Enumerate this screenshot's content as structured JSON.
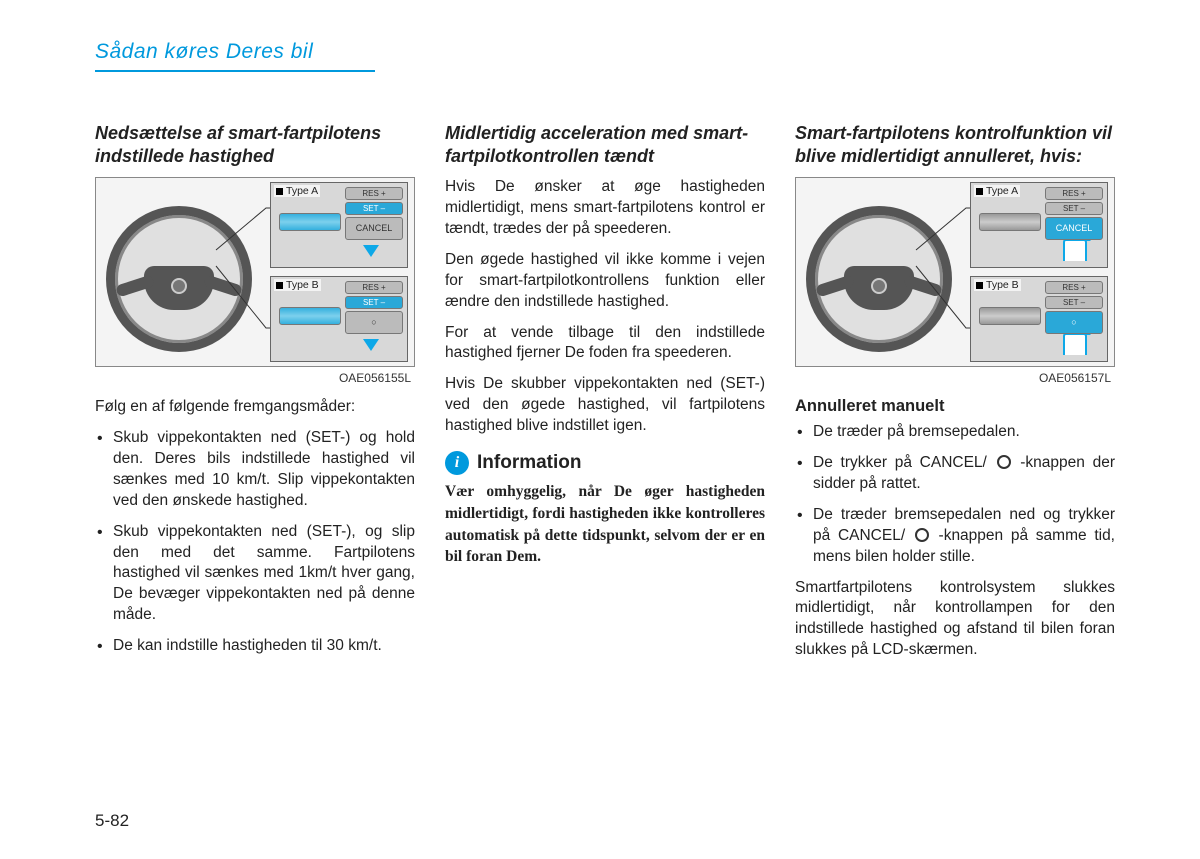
{
  "header": {
    "title": "Sådan køres Deres bil"
  },
  "page_number": "5-82",
  "col1": {
    "heading": "Nedsættelse af smart-fartpilotens indstillede hastighed",
    "figure": {
      "panelA_label": "Type A",
      "panelB_label": "Type B",
      "btn_res": "RES +",
      "btn_set": "SET –",
      "btn_cancel": "CANCEL",
      "btn_circle": "○",
      "caption": "OAE056155L",
      "hi_color": "#2aa8d8"
    },
    "intro": "Følg en af følgende fremgangsmåder:",
    "bullets": [
      "Skub vippekontakten ned (SET-) og hold den. Deres bils indstillede hastighed vil sænkes med 10 km/t. Slip vippekontakten ved den ønskede hastighed.",
      "Skub vippekontakten ned (SET-), og slip den med det samme. Fartpilotens hastighed vil sænkes med 1km/t hver gang, De bevæger vippekontakten ned på denne måde.",
      "De kan indstille hastigheden til 30 km/t."
    ]
  },
  "col2": {
    "heading": "Midlertidig acceleration med smart-fartpilotkontrollen tændt",
    "paras": [
      "Hvis De ønsker at øge hastigheden midlertidigt, mens smart-fartpilotens kontrol er tændt, trædes der på speederen.",
      "Den øgede hastighed vil ikke komme i vejen for smart-fartpilotkontrollens funktion eller ændre den indstillede hastighed.",
      "For at vende tilbage til den indstillede hastighed fjerner De foden fra speederen.",
      "Hvis De skubber vippekontakten ned (SET-) ved den øgede hastighed, vil fartpilotens hastighed blive indstillet igen."
    ],
    "info_label": "Information",
    "info_text": "Vær omhyggelig, når De øger hastigheden midlertidigt, fordi hastigheden ikke kontrolleres automatisk på dette tidspunkt, selvom der er en bil foran Dem."
  },
  "col3": {
    "heading": "Smart-fartpilotens kontrolfunktion vil blive midlertidigt annulleret, hvis:",
    "figure": {
      "panelA_label": "Type A",
      "panelB_label": "Type B",
      "btn_res": "RES +",
      "btn_set": "SET –",
      "btn_cancel": "CANCEL",
      "btn_circle": "○",
      "caption": "OAE056157L",
      "hi_color": "#2aa8d8"
    },
    "subheading": "Annulleret manuelt",
    "bullets": [
      "De træder på bremsepedalen.",
      "De trykker på CANCEL/ ○ -knappen der sidder på rattet.",
      "De træder bremsepedalen ned og trykker på CANCEL/ ○ -knappen på samme tid, mens bilen holder stille."
    ],
    "tail": "Smartfartpilotens kontrolsystem slukkes midlertidigt, når kontrollampen for den indstillede hastighed og afstand til bilen foran slukkes på LCD-skærmen."
  }
}
